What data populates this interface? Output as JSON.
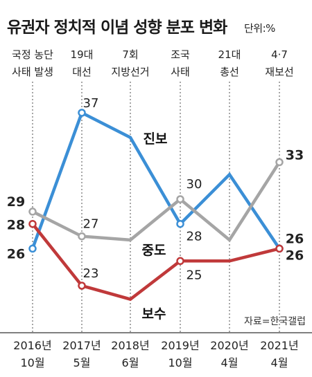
{
  "header": {
    "title": "유권자 정치적 이념 성향 분포 변화",
    "unit": "단위:%"
  },
  "events": [
    {
      "line1": "국정 농단",
      "line2": "사태 발생"
    },
    {
      "line1": "19대",
      "line2": "대선"
    },
    {
      "line1": "7회",
      "line2": "지방선거"
    },
    {
      "line1": "조국",
      "line2": "사태"
    },
    {
      "line1": "21대",
      "line2": "총선"
    },
    {
      "line1": "4·7",
      "line2": "재보선"
    }
  ],
  "source": "자료=한국갤럽",
  "colors": {
    "progressive": "#3b8fd6",
    "moderate": "#a5a5a5",
    "conservative": "#c0393a"
  },
  "chart_data": {
    "type": "line",
    "x": [
      "2016년 10월",
      "2017년 5월",
      "2018년 6월",
      "2019년 10월",
      "2020년 4월",
      "2021년 4월"
    ],
    "series": [
      {
        "name": "진보",
        "key": "progressive",
        "values": [
          26,
          37,
          35,
          28,
          32,
          26
        ],
        "labels": [
          "26",
          "37",
          "",
          "28",
          "",
          "26"
        ]
      },
      {
        "name": "중도",
        "key": "moderate",
        "values": [
          29,
          27,
          26.7,
          30,
          26.7,
          33
        ],
        "labels": [
          "29",
          "27",
          "",
          "30",
          "",
          "33"
        ]
      },
      {
        "name": "보수",
        "key": "conservative",
        "values": [
          28,
          23,
          21.9,
          25,
          25,
          26
        ],
        "labels": [
          "28",
          "23",
          "",
          "25",
          "",
          "26"
        ]
      }
    ],
    "ylim": [
      20,
      38
    ],
    "grid": false,
    "legend": "inline"
  }
}
